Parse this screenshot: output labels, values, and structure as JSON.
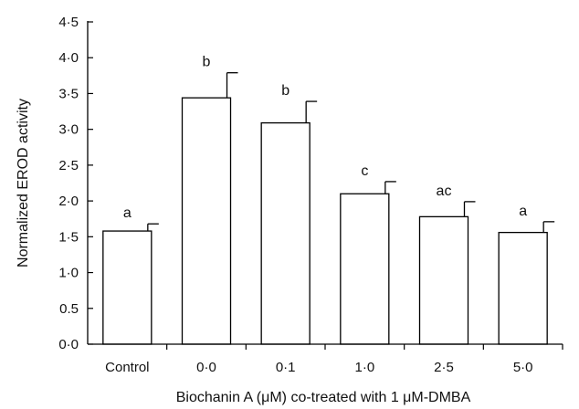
{
  "chart_data": {
    "type": "bar",
    "categories": [
      "Control",
      "0·0",
      "0·1",
      "1·0",
      "2·5",
      "5·0"
    ],
    "values": [
      1.58,
      3.44,
      3.09,
      2.1,
      1.78,
      1.56
    ],
    "errors": [
      0.1,
      0.35,
      0.3,
      0.17,
      0.21,
      0.15
    ],
    "significance": [
      "a",
      "b",
      "b",
      "c",
      "ac",
      "a"
    ],
    "title": "",
    "xlabel": "Biochanin A (μM) co-treated with 1 μM-DMBA",
    "ylabel": "Normalized EROD activity",
    "ylim": [
      0,
      4.5
    ],
    "yticks": [
      0,
      0.5,
      1.0,
      1.5,
      2.0,
      2.5,
      3.0,
      3.5,
      4.0,
      4.5
    ],
    "ytick_labels": [
      "0·0",
      "0.5",
      "1·0",
      "1·5",
      "2·0",
      "2·5",
      "3·0",
      "3·5",
      "4·0",
      "4·5"
    ],
    "grid": false,
    "bar_fill": "#ffffff",
    "bar_stroke": "#000000"
  }
}
